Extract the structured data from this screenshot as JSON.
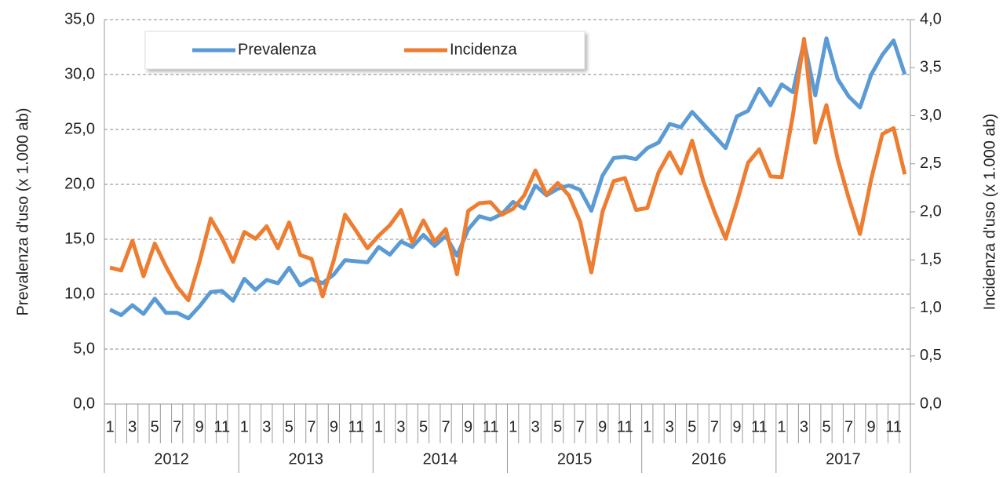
{
  "chart_data": {
    "type": "line",
    "y_label": "Prevalenza d'uso (x 1.000 ab)",
    "y2_label": "Incidenza d'uso (x 1.000 ab)",
    "categories": [
      "1",
      null,
      "3",
      null,
      "5",
      null,
      "7",
      null,
      "9",
      null,
      "11",
      null,
      "1",
      null,
      "3",
      null,
      "5",
      null,
      "7",
      null,
      "9",
      null,
      "11",
      null,
      "1",
      null,
      "3",
      null,
      "5",
      null,
      "7",
      null,
      "9",
      null,
      "11",
      null,
      "1",
      null,
      "3",
      null,
      "5",
      null,
      "7",
      null,
      "9",
      null,
      "11",
      null,
      "1",
      null,
      "3",
      null,
      "5",
      null,
      "7",
      null,
      "9",
      null,
      "11",
      null,
      "1",
      null,
      "3",
      null,
      "5",
      null,
      "7",
      null,
      "9",
      null,
      "11",
      null
    ],
    "year_groups": [
      "2012",
      "2013",
      "2014",
      "2015",
      "2016",
      "2017"
    ],
    "series": [
      {
        "name": "Prevalenza",
        "color": "#5b9bd5",
        "axis": "y",
        "values": [
          8.6,
          8.1,
          9.0,
          8.2,
          9.6,
          8.3,
          8.3,
          7.8,
          8.9,
          10.2,
          10.3,
          9.4,
          11.4,
          10.4,
          11.3,
          11.0,
          12.4,
          10.8,
          11.4,
          11.0,
          11.8,
          13.1,
          13.0,
          12.9,
          14.3,
          13.6,
          14.8,
          14.3,
          15.4,
          14.4,
          15.3,
          13.5,
          15.9,
          17.1,
          16.8,
          17.3,
          18.4,
          17.8,
          19.9,
          19.0,
          19.6,
          19.9,
          19.5,
          17.6,
          20.8,
          22.4,
          22.5,
          22.3,
          23.3,
          23.8,
          25.5,
          25.2,
          26.6,
          25.5,
          24.4,
          23.3,
          26.2,
          26.7,
          28.7,
          27.2,
          29.1,
          28.4,
          33.0,
          28.1,
          33.3,
          29.6,
          28.0,
          27.0,
          30.0,
          31.8,
          33.1,
          30.0
        ]
      },
      {
        "name": "Incidenza",
        "color": "#ed7d31",
        "axis": "y2",
        "values": [
          1.42,
          1.39,
          1.7,
          1.33,
          1.67,
          1.43,
          1.22,
          1.08,
          1.48,
          1.93,
          1.73,
          1.48,
          1.79,
          1.72,
          1.85,
          1.62,
          1.89,
          1.55,
          1.51,
          1.12,
          1.5,
          1.97,
          1.8,
          1.62,
          1.75,
          1.86,
          2.02,
          1.68,
          1.91,
          1.69,
          1.82,
          1.35,
          2.01,
          2.09,
          2.1,
          1.97,
          2.03,
          2.17,
          2.43,
          2.18,
          2.3,
          2.17,
          1.9,
          1.37,
          2.0,
          2.32,
          2.35,
          2.02,
          2.04,
          2.41,
          2.62,
          2.4,
          2.74,
          2.32,
          2.0,
          1.72,
          2.1,
          2.51,
          2.65,
          2.37,
          2.36,
          3.0,
          3.8,
          2.72,
          3.11,
          2.55,
          2.14,
          1.77,
          2.34,
          2.81,
          2.87,
          2.39
        ]
      }
    ],
    "ylim": [
      0,
      35
    ],
    "yticks": [
      {
        "value": 0,
        "label": "0,0"
      },
      {
        "value": 5,
        "label": "5,0"
      },
      {
        "value": 10,
        "label": "10,0"
      },
      {
        "value": 15,
        "label": "15,0"
      },
      {
        "value": 20,
        "label": "20,0"
      },
      {
        "value": 25,
        "label": "25,0"
      },
      {
        "value": 30,
        "label": "30,0"
      },
      {
        "value": 35,
        "label": "35,0"
      }
    ],
    "y2lim": [
      0,
      4
    ],
    "y2ticks": [
      {
        "value": 0,
        "label": "0,0"
      },
      {
        "value": 0.5,
        "label": "0,5"
      },
      {
        "value": 1,
        "label": "1,0"
      },
      {
        "value": 1.5,
        "label": "1,5"
      },
      {
        "value": 2,
        "label": "2,0"
      },
      {
        "value": 2.5,
        "label": "2,5"
      },
      {
        "value": 3,
        "label": "3,0"
      },
      {
        "value": 3.5,
        "label": "3,5"
      },
      {
        "value": 4,
        "label": "4,0"
      }
    ],
    "grid": true,
    "legend": "upper left"
  }
}
